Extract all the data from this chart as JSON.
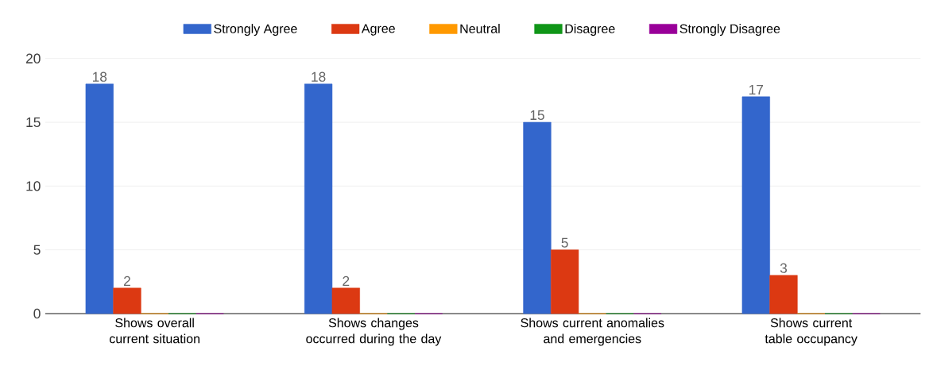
{
  "chart_data": {
    "type": "bar",
    "categories": [
      "Shows overall current situation",
      "Shows changes occurred during the day",
      "Shows current anomalies and emergencies",
      "Shows current table occupancy"
    ],
    "series": [
      {
        "name": "Strongly Agree",
        "color": "#3366cc",
        "values": [
          18,
          18,
          15,
          17
        ],
        "value_labels": [
          "18",
          "18",
          "15",
          "17"
        ]
      },
      {
        "name": "Agree",
        "color": "#dc3912",
        "values": [
          2,
          2,
          5,
          3
        ],
        "value_labels": [
          "2",
          "2",
          "5",
          "3"
        ]
      },
      {
        "name": "Neutral",
        "color": "#ff9900",
        "values": [
          0,
          0,
          0,
          0
        ],
        "value_labels": [
          null,
          null,
          null,
          null
        ]
      },
      {
        "name": "Disagree",
        "color": "#109618",
        "values": [
          0,
          0,
          0,
          0
        ],
        "value_labels": [
          null,
          null,
          null,
          null
        ]
      },
      {
        "name": "Strongly Disagree",
        "color": "#990099",
        "values": [
          0,
          0,
          0,
          0
        ],
        "value_labels": [
          null,
          null,
          null,
          null
        ]
      }
    ],
    "ylim": [
      0,
      20
    ],
    "yticks": [
      0,
      5,
      10,
      15,
      20
    ],
    "grid": "y",
    "legend": "top"
  }
}
